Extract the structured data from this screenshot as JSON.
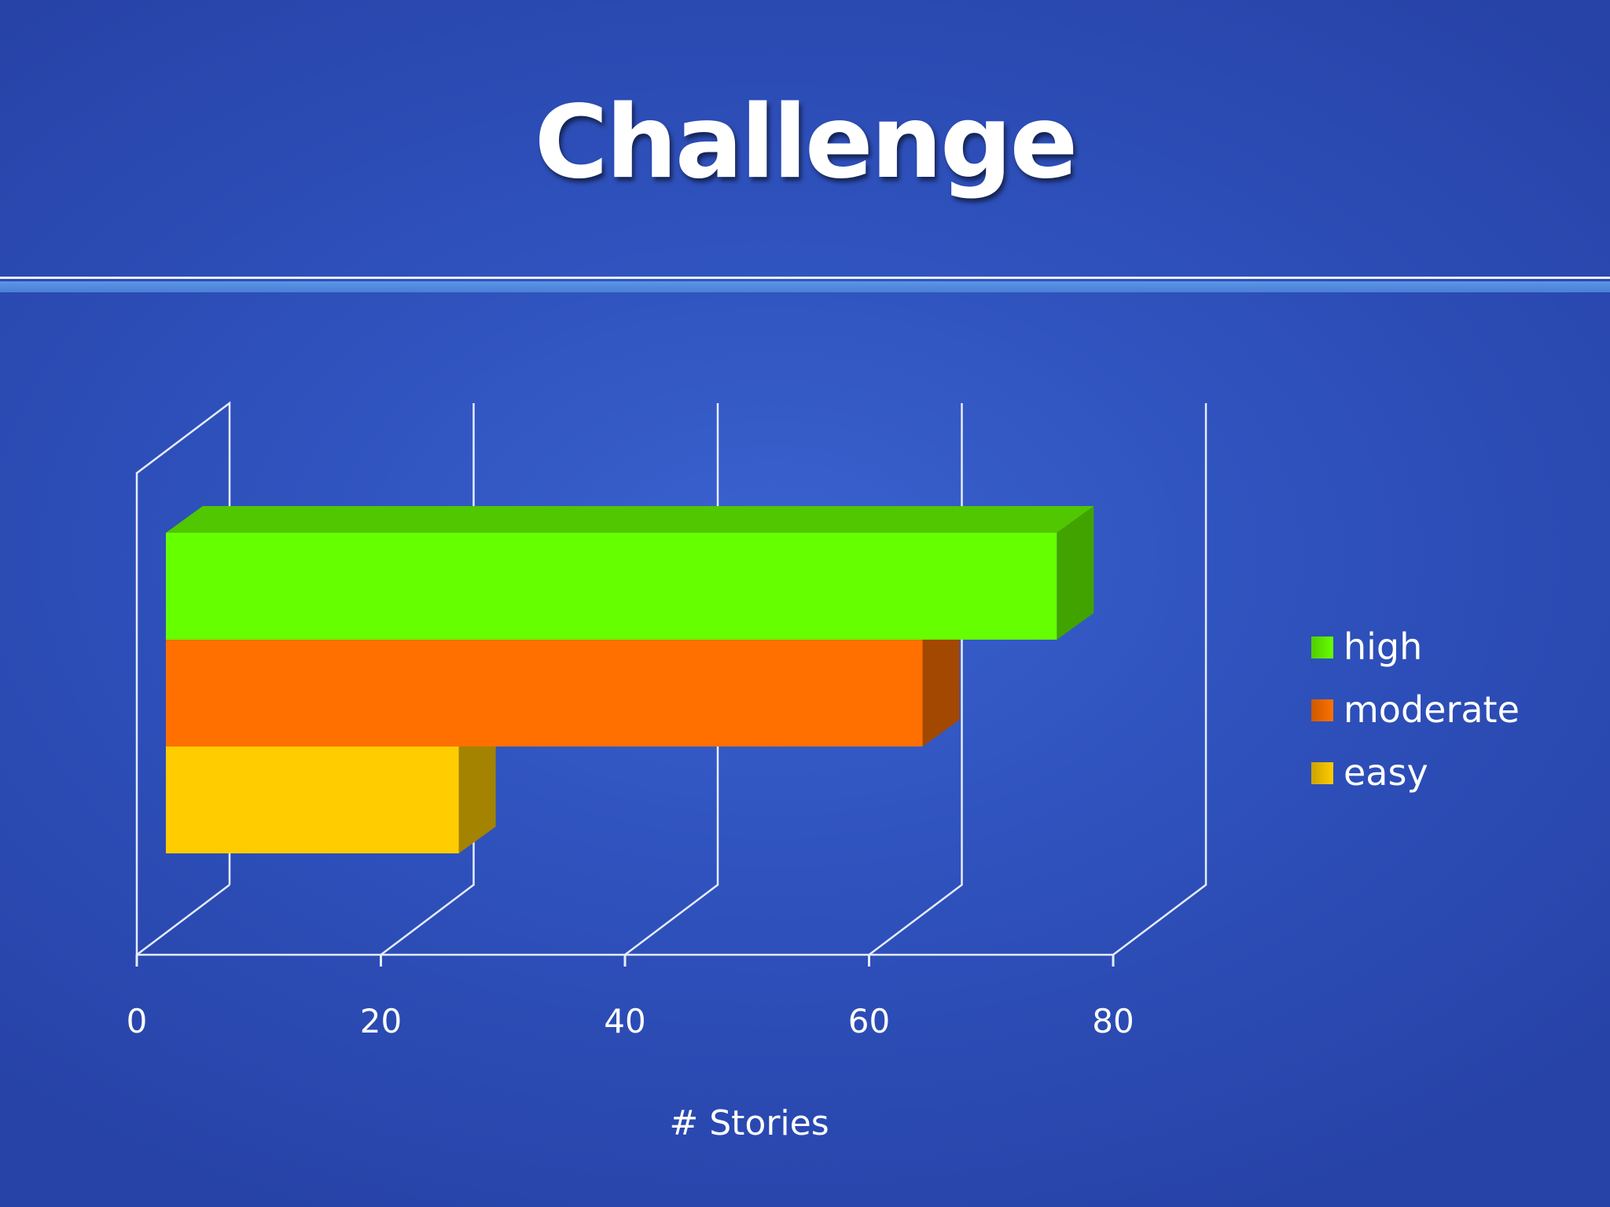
{
  "slide": {
    "title": "Challenge"
  },
  "chart_data": {
    "type": "bar",
    "orientation": "horizontal",
    "style": "3d",
    "xlabel": "# Stories",
    "xlim": [
      0,
      80
    ],
    "ticks": [
      0,
      20,
      40,
      60,
      80
    ],
    "tick_labels": [
      "0",
      "20",
      "40",
      "60",
      "80"
    ],
    "grid": true,
    "legend_position": "right",
    "series": [
      {
        "name": "high",
        "value": 73,
        "color": "#66ff00"
      },
      {
        "name": "moderate",
        "value": 62,
        "color": "#ff7000"
      },
      {
        "name": "easy",
        "value": 24,
        "color": "#ffcc00"
      }
    ]
  }
}
